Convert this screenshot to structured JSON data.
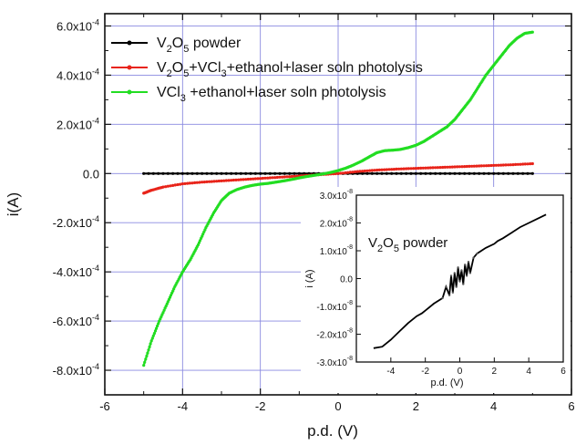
{
  "chart_data": [
    {
      "type": "line",
      "xlabel": "p.d. (V)",
      "ylabel": "i(A)",
      "xlim": [
        -6,
        6
      ],
      "ylim": [
        -0.0009,
        0.00065
      ],
      "grid": true,
      "legend_position": "top-left",
      "x_ticks": [
        "-6",
        "-4",
        "-2",
        "0",
        "2",
        "4",
        "6"
      ],
      "y_ticks": [
        "6.0x10",
        "4.0x10",
        "2.0x10",
        "0.0",
        "-2.0x10",
        "-4.0x10",
        "-6.0x10",
        "-8.0x10"
      ],
      "y_tick_exponent": "-4",
      "series": [
        {
          "name_parts": [
            "V",
            "2",
            "O",
            "5",
            " powder"
          ],
          "color": "#000000",
          "x": [
            -5,
            -4,
            -3,
            -2,
            -1,
            0,
            1,
            2,
            3,
            4,
            5
          ],
          "y": [
            0,
            0,
            0,
            0,
            0,
            0,
            0,
            0,
            0,
            0,
            0
          ]
        },
        {
          "name_parts": [
            "V",
            "2",
            "O",
            "5",
            "+VCl",
            "3",
            "+ethanol+laser soln photolysis"
          ],
          "color": "#e8241a",
          "x": [
            -5,
            -4.8,
            -4.5,
            -4,
            -3.5,
            -3,
            -2.5,
            -2,
            -1.5,
            -1,
            -0.5,
            0,
            0.5,
            1,
            1.5,
            2,
            2.5,
            3,
            3.5,
            4,
            4.5,
            5
          ],
          "y": [
            -8e-05,
            -6.8e-05,
            -5.5e-05,
            -4.2e-05,
            -3.5e-05,
            -3e-05,
            -2.5e-05,
            -2e-05,
            -1.5e-05,
            -1e-05,
            -5e-06,
            0,
            8e-06,
            1.4e-05,
            1.8e-05,
            2.1e-05,
            2.4e-05,
            2.7e-05,
            3e-05,
            3.3e-05,
            3.6e-05,
            4e-05
          ]
        },
        {
          "name_parts": [
            "VCl",
            "3",
            " +ethanol+laser soln photolysis"
          ],
          "color": "#22dd22",
          "x": [
            -5,
            -4.8,
            -4.6,
            -4.4,
            -4.2,
            -4,
            -3.8,
            -3.6,
            -3.4,
            -3.2,
            -3,
            -2.8,
            -2.6,
            -2.4,
            -2.2,
            -2,
            -1.8,
            -1.6,
            -1.4,
            -1.2,
            -1,
            -0.8,
            -0.6,
            -0.4,
            -0.2,
            0,
            0.2,
            0.4,
            0.6,
            0.8,
            1,
            1.2,
            1.4,
            1.6,
            1.8,
            2,
            2.2,
            2.4,
            2.6,
            2.8,
            3,
            3.2,
            3.4,
            3.6,
            3.8,
            4,
            4.2,
            4.4,
            4.6,
            4.8,
            5
          ],
          "y": [
            -0.00078,
            -0.00068,
            -0.0006,
            -0.00053,
            -0.00046,
            -0.0004,
            -0.00035,
            -0.00029,
            -0.00022,
            -0.00016,
            -0.00011,
            -8e-05,
            -6.5e-05,
            -5.5e-05,
            -4.8e-05,
            -4.3e-05,
            -4e-05,
            -3.5e-05,
            -3e-05,
            -2.4e-05,
            -1.8e-05,
            -1.2e-05,
            -7e-06,
            -2e-06,
            4e-06,
            1.2e-05,
            2.2e-05,
            3.5e-05,
            5e-05,
            6.8e-05,
            8.5e-05,
            9.3e-05,
            9.5e-05,
            9.8e-05,
            0.000105,
            0.000115,
            0.00013,
            0.00015,
            0.00017,
            0.00019,
            0.00022,
            0.00026,
            0.0003,
            0.00035,
            0.0004,
            0.00044,
            0.00048,
            0.00052,
            0.00055,
            0.00057,
            0.000575
          ]
        }
      ]
    },
    {
      "type": "line",
      "inset": true,
      "xlabel": "p.d. (V)",
      "ylabel": "i (A)",
      "xlim": [
        -6,
        6
      ],
      "ylim": [
        -3e-08,
        3e-08
      ],
      "x_ticks": [
        "-4",
        "-2",
        "0",
        "2",
        "4",
        "6"
      ],
      "y_ticks": [
        "3.0x10",
        "2.0x10",
        "1.0x10",
        "0.0",
        "-1.0x10",
        "-2.0x10",
        "-3.0x10"
      ],
      "y_tick_exponent": "-8",
      "annotation_parts": [
        "V",
        "2",
        "O",
        "5",
        " powder"
      ],
      "series": [
        {
          "color": "#000000",
          "x": [
            -5,
            -4.5,
            -4,
            -3.5,
            -3,
            -2.5,
            -2.2,
            -2,
            -1.5,
            -1,
            -0.8,
            -0.6,
            -0.5,
            -0.4,
            -0.3,
            -0.2,
            -0.1,
            0,
            0.1,
            0.2,
            0.3,
            0.4,
            0.5,
            0.6,
            0.8,
            1,
            1.5,
            2,
            2.2,
            2.5,
            3,
            3.5,
            4,
            4.5,
            5
          ],
          "y": [
            -2.5e-08,
            -2.45e-08,
            -2.2e-08,
            -1.9e-08,
            -1.6e-08,
            -1.35e-08,
            -1.25e-08,
            -1.15e-08,
            -9e-09,
            -7e-09,
            -3e-09,
            -6e-09,
            1e-09,
            -5e-09,
            2e-09,
            -3e-09,
            4e-09,
            -1e-09,
            3e-09,
            -2e-09,
            5e-09,
            1e-09,
            6e-09,
            2e-09,
            7.5e-09,
            9e-09,
            1.1e-08,
            1.25e-08,
            1.35e-08,
            1.45e-08,
            1.65e-08,
            1.85e-08,
            2e-08,
            2.15e-08,
            2.3e-08
          ]
        }
      ]
    }
  ]
}
